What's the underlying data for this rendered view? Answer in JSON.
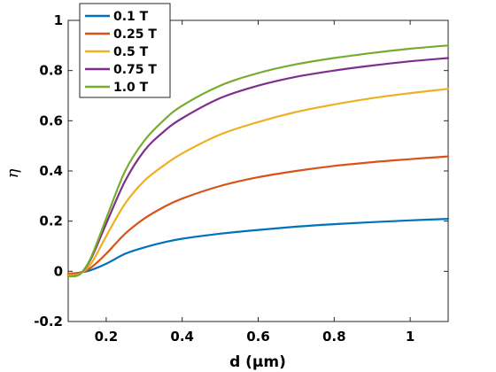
{
  "chart_data": {
    "type": "line",
    "xlabel": "d (μm)",
    "ylabel": "η",
    "xlim": [
      0.1,
      1.1
    ],
    "ylim": [
      -0.2,
      1.0
    ],
    "xticks": [
      0.2,
      0.4,
      0.6,
      0.8,
      1.0
    ],
    "xtick_labels": [
      "0.2",
      "0.4",
      "0.6",
      "0.8",
      "1"
    ],
    "yticks": [
      -0.2,
      0,
      0.2,
      0.4,
      0.6,
      0.8,
      1.0
    ],
    "ytick_labels": [
      "-0.2",
      "0",
      "0.2",
      "0.4",
      "0.6",
      "0.8",
      "1"
    ],
    "grid": false,
    "legend_position": "top-left",
    "x": [
      0.1,
      0.13,
      0.16,
      0.2,
      0.25,
      0.3,
      0.35,
      0.4,
      0.5,
      0.6,
      0.7,
      0.8,
      0.9,
      1.0,
      1.1
    ],
    "series": [
      {
        "name": "0.1 T",
        "color": "#0072BD",
        "values": [
          -0.01,
          -0.005,
          0.005,
          0.03,
          0.07,
          0.095,
          0.115,
          0.13,
          0.15,
          0.165,
          0.178,
          0.188,
          0.196,
          0.203,
          0.209
        ]
      },
      {
        "name": "0.25 T",
        "color": "#D95319",
        "values": [
          -0.01,
          -0.005,
          0.015,
          0.07,
          0.15,
          0.21,
          0.255,
          0.29,
          0.34,
          0.375,
          0.4,
          0.42,
          0.435,
          0.447,
          0.458
        ]
      },
      {
        "name": "0.5 T",
        "color": "#EDB120",
        "values": [
          -0.015,
          -0.01,
          0.03,
          0.14,
          0.27,
          0.36,
          0.42,
          0.47,
          0.545,
          0.595,
          0.635,
          0.665,
          0.69,
          0.71,
          0.727
        ]
      },
      {
        "name": "0.75 T",
        "color": "#7E2F8E",
        "values": [
          -0.02,
          -0.012,
          0.05,
          0.19,
          0.36,
          0.48,
          0.555,
          0.61,
          0.69,
          0.74,
          0.775,
          0.8,
          0.82,
          0.837,
          0.85
        ]
      },
      {
        "name": "1.0 T",
        "color": "#77AC30",
        "values": [
          -0.02,
          -0.012,
          0.055,
          0.21,
          0.4,
          0.52,
          0.6,
          0.66,
          0.74,
          0.79,
          0.825,
          0.85,
          0.87,
          0.887,
          0.9
        ]
      }
    ]
  }
}
